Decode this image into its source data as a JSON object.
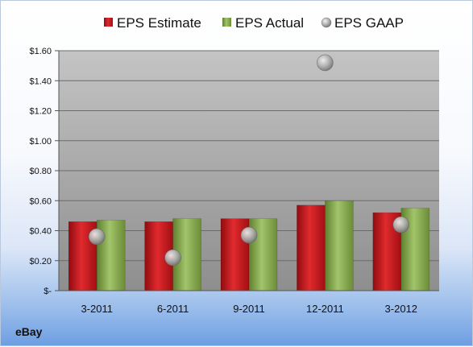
{
  "company": "eBay",
  "colors": {
    "estimate": "#c8151b",
    "actual": "#8db052",
    "gaap": "#a9a9a9"
  },
  "chart_data": {
    "type": "bar",
    "title": "",
    "xlabel": "",
    "ylabel": "",
    "categories": [
      "3-2011",
      "6-2011",
      "9-2011",
      "12-2011",
      "3-2012"
    ],
    "series": [
      {
        "name": "EPS Estimate",
        "kind": "bar",
        "values": [
          0.46,
          0.46,
          0.48,
          0.57,
          0.52
        ]
      },
      {
        "name": "EPS Actual",
        "kind": "bar",
        "values": [
          0.47,
          0.48,
          0.48,
          0.6,
          0.55
        ]
      },
      {
        "name": "EPS GAAP",
        "kind": "point",
        "values": [
          0.36,
          0.22,
          0.37,
          1.52,
          0.44
        ]
      }
    ],
    "ylim": [
      0,
      1.6
    ],
    "yticks": [
      0,
      0.2,
      0.4,
      0.6,
      0.8,
      1.0,
      1.2,
      1.4,
      1.6
    ],
    "ytick_labels": [
      "$-",
      "$0.20",
      "$0.40",
      "$0.60",
      "$0.80",
      "$1.00",
      "$1.20",
      "$1.40",
      "$1.60"
    ],
    "grid": true,
    "legend_position": "top"
  }
}
